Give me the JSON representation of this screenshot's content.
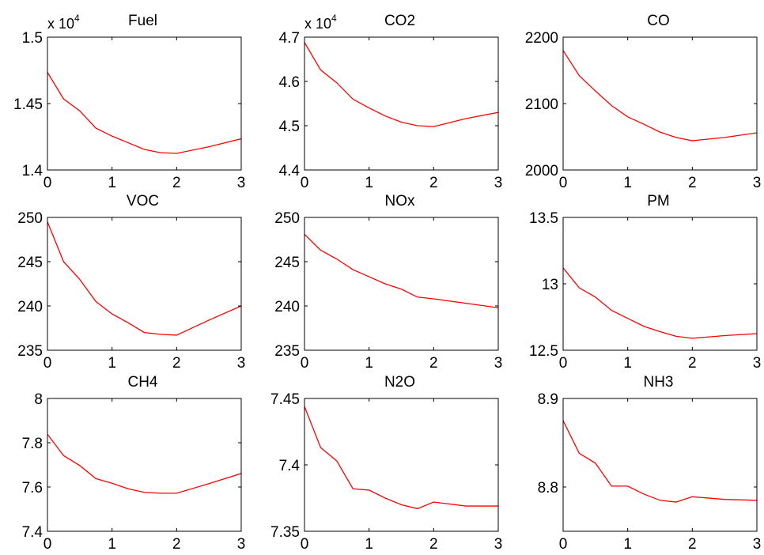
{
  "figure": {
    "background": "#ffffff",
    "line_color": "#ff0000",
    "axis_color": "#000000"
  },
  "chart_data": [
    {
      "type": "line",
      "title": "Fuel",
      "xlabel": "",
      "ylabel": "",
      "y_multiplier": "x 10",
      "y_exponent": "4",
      "xlim": [
        0,
        3
      ],
      "ylim": [
        1.4,
        1.5
      ],
      "xticks": [
        0,
        1,
        2,
        3
      ],
      "xtick_labels": [
        "0",
        "1",
        "2",
        "3"
      ],
      "yticks": [
        1.4,
        1.45,
        1.5
      ],
      "ytick_labels": [
        "1.4",
        "1.45",
        "1.5"
      ],
      "grid": false,
      "color": "#ff0000",
      "x": [
        0,
        0.25,
        0.5,
        0.75,
        1,
        1.25,
        1.5,
        1.75,
        2,
        2.5,
        3
      ],
      "y": [
        1.4735,
        1.4535,
        1.4445,
        1.4315,
        1.4255,
        1.4205,
        1.4155,
        1.413,
        1.4125,
        1.4175,
        1.4235
      ]
    },
    {
      "type": "line",
      "title": "CO2",
      "xlabel": "",
      "ylabel": "",
      "y_multiplier": "x 10",
      "y_exponent": "4",
      "xlim": [
        0,
        3
      ],
      "ylim": [
        4.4,
        4.7
      ],
      "xticks": [
        0,
        1,
        2,
        3
      ],
      "xtick_labels": [
        "0",
        "1",
        "2",
        "3"
      ],
      "yticks": [
        4.4,
        4.5,
        4.6,
        4.7
      ],
      "ytick_labels": [
        "4.4",
        "4.5",
        "4.6",
        "4.7"
      ],
      "grid": false,
      "color": "#ff0000",
      "x": [
        0,
        0.25,
        0.5,
        0.75,
        1,
        1.25,
        1.5,
        1.75,
        2,
        2.5,
        3
      ],
      "y": [
        4.688,
        4.626,
        4.597,
        4.56,
        4.54,
        4.522,
        4.508,
        4.5,
        4.498,
        4.516,
        4.53
      ]
    },
    {
      "type": "line",
      "title": "CO",
      "xlabel": "",
      "ylabel": "",
      "xlim": [
        0,
        3
      ],
      "ylim": [
        2000,
        2200
      ],
      "xticks": [
        0,
        1,
        2,
        3
      ],
      "xtick_labels": [
        "0",
        "1",
        "2",
        "3"
      ],
      "yticks": [
        2000,
        2100,
        2200
      ],
      "ytick_labels": [
        "2000",
        "2100",
        "2200"
      ],
      "grid": false,
      "color": "#ff0000",
      "x": [
        0,
        0.25,
        0.5,
        0.75,
        1,
        1.25,
        1.5,
        1.75,
        2,
        2.5,
        3
      ],
      "y": [
        2180,
        2142,
        2119,
        2097,
        2080,
        2069,
        2057,
        2049,
        2044,
        2049,
        2056
      ]
    },
    {
      "type": "line",
      "title": "VOC",
      "xlabel": "",
      "ylabel": "",
      "xlim": [
        0,
        3
      ],
      "ylim": [
        235,
        250
      ],
      "xticks": [
        0,
        1,
        2,
        3
      ],
      "xtick_labels": [
        "0",
        "1",
        "2",
        "3"
      ],
      "yticks": [
        235,
        240,
        245,
        250
      ],
      "ytick_labels": [
        "235",
        "240",
        "245",
        "250"
      ],
      "grid": false,
      "color": "#ff0000",
      "x": [
        0,
        0.25,
        0.5,
        0.75,
        1,
        1.25,
        1.5,
        1.75,
        2,
        2.5,
        3
      ],
      "y": [
        249.5,
        245.0,
        243.0,
        240.5,
        239.1,
        238.1,
        237.0,
        236.8,
        236.7,
        238.4,
        240.0
      ]
    },
    {
      "type": "line",
      "title": "NOx",
      "xlabel": "",
      "ylabel": "",
      "xlim": [
        0,
        3
      ],
      "ylim": [
        235,
        250
      ],
      "xticks": [
        0,
        1,
        2,
        3
      ],
      "xtick_labels": [
        "0",
        "1",
        "2",
        "3"
      ],
      "yticks": [
        235,
        240,
        245,
        250
      ],
      "ytick_labels": [
        "235",
        "240",
        "245",
        "250"
      ],
      "grid": false,
      "color": "#ff0000",
      "x": [
        0,
        0.25,
        0.5,
        0.75,
        1,
        1.25,
        1.5,
        1.75,
        2,
        2.5,
        3
      ],
      "y": [
        248.1,
        246.3,
        245.3,
        244.1,
        243.3,
        242.5,
        241.9,
        241.0,
        240.8,
        240.3,
        239.8
      ]
    },
    {
      "type": "line",
      "title": "PM",
      "xlabel": "",
      "ylabel": "",
      "xlim": [
        0,
        3
      ],
      "ylim": [
        12.5,
        13.5
      ],
      "xticks": [
        0,
        1,
        2,
        3
      ],
      "xtick_labels": [
        "0",
        "1",
        "2",
        "3"
      ],
      "yticks": [
        12.5,
        13.0,
        13.5
      ],
      "ytick_labels": [
        "12.5",
        "13",
        "13.5"
      ],
      "grid": false,
      "color": "#ff0000",
      "x": [
        0,
        0.25,
        0.5,
        0.75,
        1,
        1.25,
        1.5,
        1.75,
        2,
        2.5,
        3
      ],
      "y": [
        13.12,
        12.97,
        12.9,
        12.8,
        12.74,
        12.68,
        12.64,
        12.605,
        12.59,
        12.61,
        12.625
      ]
    },
    {
      "type": "line",
      "title": "CH4",
      "xlabel": "",
      "ylabel": "",
      "xlim": [
        0,
        3
      ],
      "ylim": [
        7.4,
        8.0
      ],
      "xticks": [
        0,
        1,
        2,
        3
      ],
      "xtick_labels": [
        "0",
        "1",
        "2",
        "3"
      ],
      "yticks": [
        7.4,
        7.6,
        7.8,
        8.0
      ],
      "ytick_labels": [
        "7.4",
        "7.6",
        "7.8",
        "8"
      ],
      "grid": false,
      "color": "#ff0000",
      "x": [
        0,
        0.25,
        0.5,
        0.75,
        1,
        1.25,
        1.5,
        1.75,
        2,
        2.5,
        3
      ],
      "y": [
        7.838,
        7.742,
        7.697,
        7.638,
        7.617,
        7.592,
        7.576,
        7.572,
        7.572,
        7.615,
        7.661
      ]
    },
    {
      "type": "line",
      "title": "N2O",
      "xlabel": "",
      "ylabel": "",
      "xlim": [
        0,
        3
      ],
      "ylim": [
        7.35,
        7.45
      ],
      "xticks": [
        0,
        1,
        2,
        3
      ],
      "xtick_labels": [
        "0",
        "1",
        "2",
        "3"
      ],
      "yticks": [
        7.35,
        7.4,
        7.45
      ],
      "ytick_labels": [
        "7.35",
        "7.4",
        "7.45"
      ],
      "grid": false,
      "color": "#ff0000",
      "x": [
        0,
        0.25,
        0.5,
        0.75,
        1,
        1.25,
        1.5,
        1.75,
        2,
        2.5,
        3
      ],
      "y": [
        7.444,
        7.413,
        7.403,
        7.382,
        7.381,
        7.375,
        7.37,
        7.367,
        7.372,
        7.369,
        7.369
      ]
    },
    {
      "type": "line",
      "title": "NH3",
      "xlabel": "",
      "ylabel": "",
      "xlim": [
        0,
        3
      ],
      "ylim": [
        8.75,
        8.9
      ],
      "xticks": [
        0,
        1,
        2,
        3
      ],
      "xtick_labels": [
        "0",
        "1",
        "2",
        "3"
      ],
      "yticks": [
        8.8,
        8.9
      ],
      "ytick_labels": [
        "8.8",
        "8.9"
      ],
      "grid": false,
      "color": "#ff0000",
      "x": [
        0,
        0.25,
        0.5,
        0.75,
        1,
        1.25,
        1.5,
        1.75,
        2,
        2.5,
        3
      ],
      "y": [
        8.875,
        8.838,
        8.827,
        8.801,
        8.801,
        8.792,
        8.785,
        8.783,
        8.789,
        8.786,
        8.785
      ]
    }
  ]
}
